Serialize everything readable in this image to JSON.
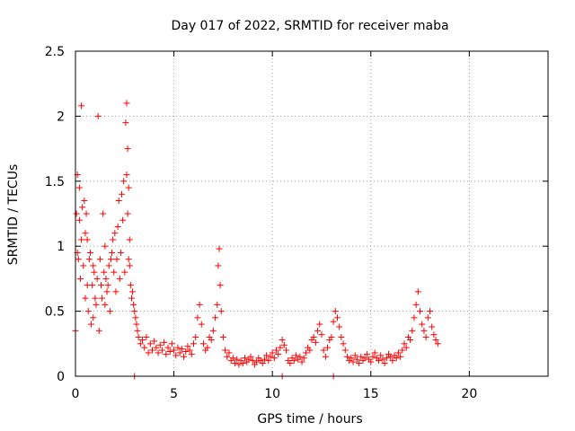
{
  "chart_data": {
    "type": "scatter",
    "title": "Day 017 of 2022, SRMTID for receiver maba",
    "xlabel": "GPS time / hours",
    "ylabel": "SRMTID / TECUs",
    "xlim": [
      0,
      24
    ],
    "ylim": [
      0,
      2.5
    ],
    "xticks": [
      0,
      5,
      10,
      15,
      20
    ],
    "xtick_labels": [
      "0",
      "5",
      "10",
      "15",
      "20"
    ],
    "yticks": [
      0,
      0.5,
      1,
      1.5,
      2,
      2.5
    ],
    "ytick_labels": [
      "0",
      "0.5",
      "1",
      "1.5",
      "2",
      "2.5"
    ],
    "grid": true,
    "marker": "+",
    "color": "#ff0000",
    "series": [
      {
        "name": "SRMTID",
        "x": [
          0.0,
          0.05,
          0.1,
          0.1,
          0.15,
          0.2,
          0.2,
          0.25,
          0.3,
          0.3,
          0.35,
          0.4,
          0.45,
          0.5,
          0.5,
          0.55,
          0.6,
          0.6,
          0.65,
          0.7,
          0.75,
          0.8,
          0.85,
          0.9,
          0.9,
          0.95,
          1.0,
          1.05,
          1.1,
          1.15,
          1.2,
          1.25,
          1.3,
          1.35,
          1.4,
          1.45,
          1.5,
          1.5,
          1.55,
          1.6,
          1.65,
          1.7,
          1.75,
          1.8,
          1.85,
          1.9,
          1.95,
          2.0,
          2.05,
          2.1,
          2.15,
          2.2,
          2.25,
          2.3,
          2.35,
          2.4,
          2.45,
          2.5,
          2.55,
          2.6,
          2.6,
          2.65,
          2.65,
          2.7,
          2.7,
          2.75,
          2.75,
          2.8,
          2.85,
          2.9,
          2.95,
          3.0,
          3.05,
          3.1,
          3.15,
          3.2,
          3.3,
          3.4,
          3.5,
          3.6,
          3.7,
          3.8,
          3.9,
          4.0,
          4.1,
          4.2,
          4.3,
          4.4,
          4.5,
          4.6,
          4.7,
          4.8,
          4.9,
          5.0,
          5.1,
          5.2,
          5.3,
          5.4,
          5.5,
          5.6,
          5.7,
          5.8,
          5.9,
          6.0,
          6.1,
          6.2,
          6.3,
          6.4,
          6.5,
          6.6,
          6.7,
          6.8,
          6.9,
          7.0,
          7.1,
          7.2,
          7.25,
          7.3,
          7.35,
          7.4,
          7.5,
          7.6,
          7.7,
          7.8,
          7.9,
          8.0,
          8.1,
          8.2,
          8.3,
          8.4,
          8.5,
          8.6,
          8.7,
          8.8,
          8.9,
          9.0,
          9.1,
          9.2,
          9.3,
          9.4,
          9.5,
          9.6,
          9.7,
          9.8,
          9.9,
          10.0,
          10.1,
          10.2,
          10.3,
          10.4,
          10.5,
          10.6,
          10.7,
          10.8,
          10.9,
          11.0,
          11.1,
          11.2,
          11.3,
          11.4,
          11.5,
          11.6,
          11.7,
          11.8,
          11.9,
          12.0,
          12.1,
          12.2,
          12.3,
          12.4,
          12.5,
          12.6,
          12.7,
          12.8,
          12.9,
          13.0,
          13.1,
          13.2,
          13.3,
          13.4,
          13.5,
          13.6,
          13.7,
          13.8,
          13.9,
          14.0,
          14.1,
          14.2,
          14.3,
          14.4,
          14.5,
          14.6,
          14.7,
          14.8,
          14.9,
          15.0,
          15.1,
          15.2,
          15.3,
          15.4,
          15.5,
          15.6,
          15.7,
          15.8,
          15.9,
          16.0,
          16.1,
          16.2,
          16.3,
          16.4,
          16.5,
          16.6,
          16.7,
          16.8,
          16.9,
          17.0,
          17.1,
          17.2,
          17.3,
          17.4,
          17.5,
          17.6,
          17.7,
          17.8,
          17.9,
          18.0,
          18.1,
          18.2,
          18.3,
          18.4,
          3.0,
          10.5,
          13.1
        ],
        "y": [
          0.35,
          1.25,
          0.95,
          1.55,
          0.9,
          1.2,
          1.45,
          0.75,
          1.05,
          2.08,
          1.3,
          0.85,
          1.35,
          0.6,
          1.1,
          1.25,
          0.7,
          1.05,
          0.5,
          0.9,
          0.95,
          0.4,
          0.7,
          0.45,
          0.85,
          0.8,
          0.6,
          0.55,
          0.75,
          2.0,
          0.35,
          0.9,
          0.7,
          0.6,
          1.25,
          0.8,
          0.55,
          1.0,
          0.75,
          0.65,
          0.7,
          0.85,
          0.5,
          0.9,
          0.95,
          1.05,
          0.8,
          1.1,
          0.65,
          0.9,
          1.15,
          1.35,
          0.75,
          0.95,
          1.4,
          1.2,
          1.5,
          0.8,
          1.95,
          2.1,
          1.55,
          1.75,
          1.25,
          1.45,
          0.9,
          1.05,
          0.85,
          0.7,
          0.6,
          0.65,
          0.55,
          0.5,
          0.45,
          0.4,
          0.35,
          0.3,
          0.25,
          0.28,
          0.22,
          0.3,
          0.18,
          0.25,
          0.2,
          0.27,
          0.22,
          0.18,
          0.24,
          0.2,
          0.26,
          0.17,
          0.22,
          0.19,
          0.25,
          0.2,
          0.16,
          0.22,
          0.18,
          0.21,
          0.15,
          0.19,
          0.23,
          0.2,
          0.17,
          0.25,
          0.3,
          0.45,
          0.55,
          0.4,
          0.25,
          0.2,
          0.22,
          0.3,
          0.28,
          0.35,
          0.45,
          0.55,
          0.85,
          0.98,
          0.7,
          0.5,
          0.3,
          0.2,
          0.15,
          0.18,
          0.12,
          0.14,
          0.1,
          0.13,
          0.09,
          0.12,
          0.1,
          0.14,
          0.11,
          0.13,
          0.15,
          0.12,
          0.09,
          0.11,
          0.14,
          0.12,
          0.1,
          0.13,
          0.16,
          0.12,
          0.15,
          0.18,
          0.14,
          0.2,
          0.17,
          0.22,
          0.28,
          0.24,
          0.2,
          0.12,
          0.1,
          0.14,
          0.12,
          0.16,
          0.13,
          0.15,
          0.11,
          0.14,
          0.18,
          0.22,
          0.2,
          0.28,
          0.3,
          0.26,
          0.35,
          0.4,
          0.32,
          0.2,
          0.15,
          0.22,
          0.28,
          0.3,
          0.42,
          0.5,
          0.45,
          0.38,
          0.3,
          0.25,
          0.2,
          0.15,
          0.12,
          0.14,
          0.11,
          0.16,
          0.13,
          0.1,
          0.15,
          0.12,
          0.14,
          0.17,
          0.13,
          0.11,
          0.15,
          0.18,
          0.14,
          0.12,
          0.16,
          0.13,
          0.1,
          0.14,
          0.17,
          0.15,
          0.12,
          0.16,
          0.14,
          0.18,
          0.15,
          0.2,
          0.25,
          0.22,
          0.3,
          0.28,
          0.35,
          0.45,
          0.55,
          0.65,
          0.5,
          0.4,
          0.35,
          0.3,
          0.45,
          0.5,
          0.38,
          0.32,
          0.28,
          0.25,
          0.0,
          0.0,
          0.0
        ]
      }
    ]
  }
}
